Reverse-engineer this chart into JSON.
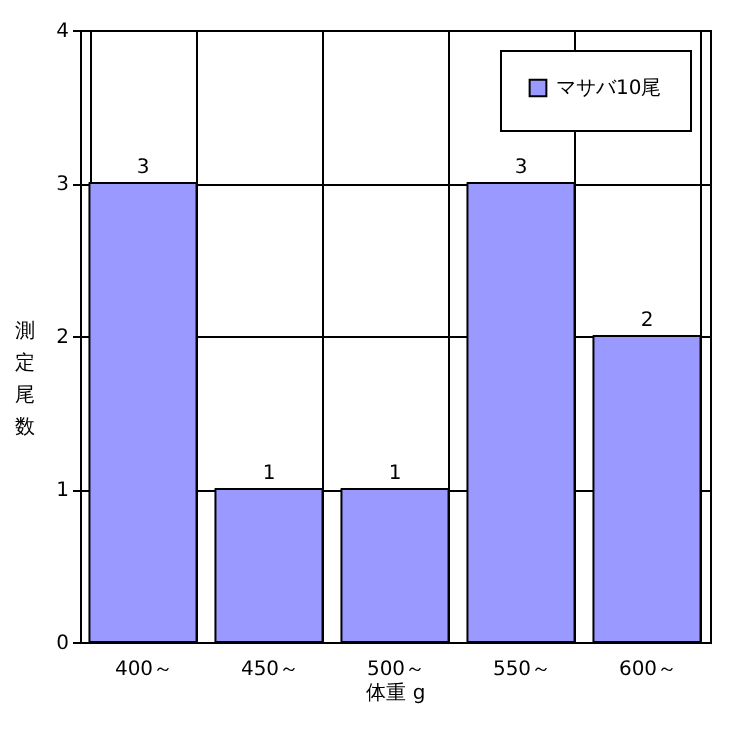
{
  "chart_data": {
    "type": "bar",
    "xlabel": "体重 g",
    "ylabel": "測定尾数",
    "categories": [
      "400～",
      "450～",
      "500～",
      "550～",
      "600～"
    ],
    "series": [
      {
        "name": "マサバ10尾",
        "color": "#9999ff",
        "values": [
          3,
          1,
          1,
          3,
          2
        ]
      }
    ],
    "ylim": [
      0,
      4
    ],
    "yticks": [
      0,
      1,
      2,
      3,
      4
    ],
    "grid": true,
    "legend": "top right",
    "data_labels": true
  }
}
